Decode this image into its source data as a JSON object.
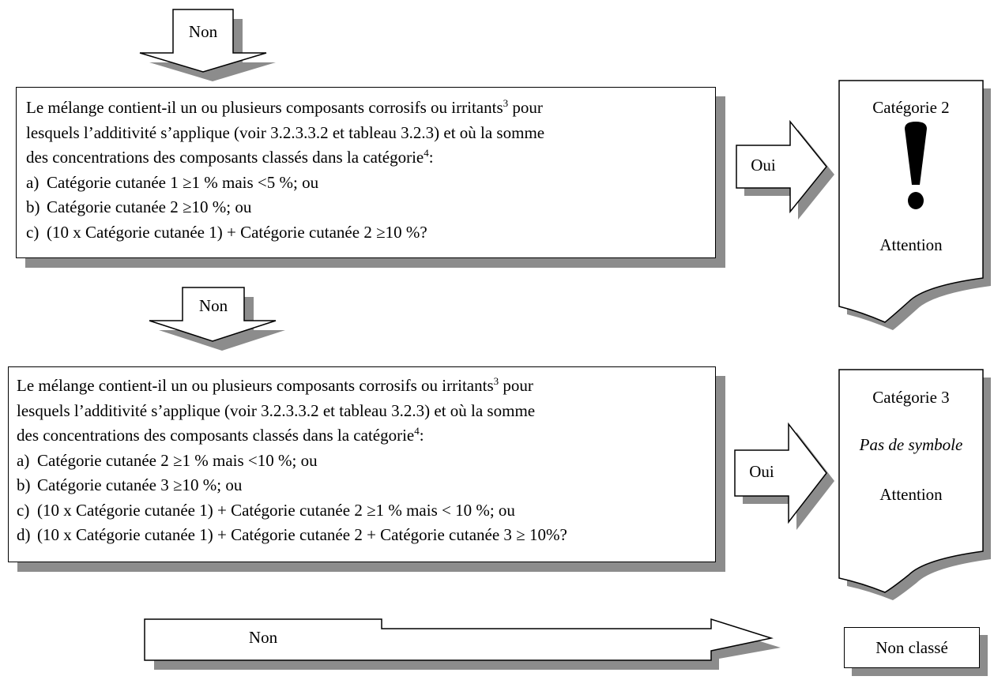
{
  "arrows": {
    "no_1": "Non",
    "no_2": "Non",
    "yes_1": "Oui",
    "yes_2": "Oui",
    "no_3": "Non"
  },
  "question_1": {
    "line1": "Le mélange contient-il un ou plusieurs composants corrosifs ou irritants",
    "sup1": "3",
    "line1_end": " pour",
    "line2": "lesquels l’additivité s’applique (voir 3.2.3.3.2 et tableau 3.2.3) et où la somme",
    "line3": "des concentrations des composants classés dans la catégorie",
    "sup2": "4",
    "line3_end": ":",
    "items": [
      {
        "label": "a)",
        "text": "Catégorie cutanée 1 ≥1 % mais <5 %; ou"
      },
      {
        "label": "b)",
        "text": "Catégorie cutanée 2 ≥10 %; ou"
      },
      {
        "label": "c)",
        "text": "(10 x Catégorie cutanée 1) + Catégorie cutanée 2 ≥10 %?"
      }
    ]
  },
  "question_2": {
    "line1": "Le mélange contient-il un ou plusieurs composants corrosifs ou irritants",
    "sup1": "3",
    "line1_end": " pour",
    "line2": "lesquels l’additivité s’applique (voir 3.2.3.3.2 et tableau 3.2.3) et où la somme",
    "line3": "des concentrations des composants classés dans la catégorie",
    "sup2": "4",
    "line3_end": ":",
    "items": [
      {
        "label": "a)",
        "text": "Catégorie cutanée 2 ≥1 % mais <10 %; ou"
      },
      {
        "label": "b)",
        "text": "Catégorie cutanée 3 ≥10 %; ou"
      },
      {
        "label": "c)",
        "text": "(10 x Catégorie cutanée 1) + Catégorie cutanée 2 ≥1 % mais < 10 %; ou"
      },
      {
        "label": "d)",
        "text": "(10 x Catégorie cutanée 1) + Catégorie cutanée 2 + Catégorie cutanée 3 ≥ 10%?"
      }
    ]
  },
  "result_1": {
    "category": "Catégorie 2",
    "symbol": "exclamation-mark-icon",
    "signal": "Attention"
  },
  "result_2": {
    "category": "Catégorie 3",
    "symbol_text": "Pas de symbole",
    "signal": "Attention"
  },
  "result_3": {
    "label": "Non classé"
  },
  "colors": {
    "shadow": "#8c8c8c",
    "border": "#000000",
    "fill": "#ffffff"
  }
}
